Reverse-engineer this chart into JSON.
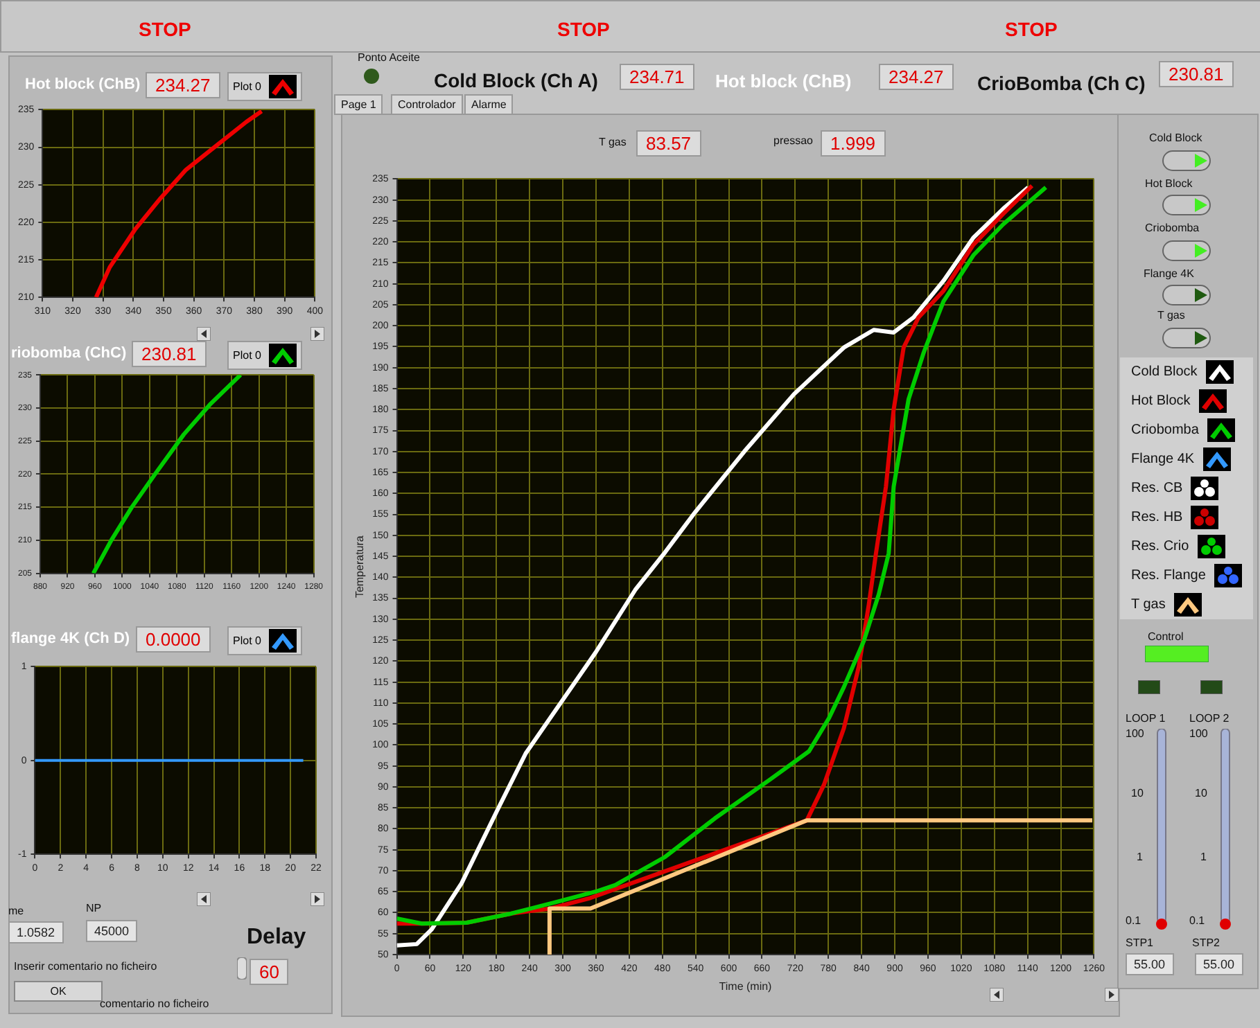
{
  "chart_data": [
    {
      "type": "line",
      "xlabel": "Time (min)",
      "ylabel": "Temperatura",
      "xlim": [
        0,
        1260
      ],
      "ylim": [
        50,
        235
      ],
      "xticks": [
        0,
        60,
        120,
        180,
        240,
        300,
        360,
        420,
        480,
        540,
        600,
        660,
        720,
        780,
        840,
        900,
        960,
        1020,
        1080,
        1140,
        1200,
        1260
      ],
      "yticks": [
        50,
        55,
        60,
        65,
        70,
        75,
        80,
        85,
        90,
        95,
        100,
        105,
        110,
        115,
        120,
        125,
        130,
        135,
        140,
        145,
        150,
        155,
        160,
        165,
        170,
        175,
        180,
        185,
        190,
        195,
        200,
        205,
        210,
        215,
        220,
        225,
        230,
        235
      ],
      "grid": true,
      "legend": "right",
      "marker": "none",
      "series": [
        {
          "name": "Cold Block",
          "color": "#ffffff",
          "x": [
            0,
            36,
            63,
            117,
            180,
            233,
            296,
            359,
            431,
            485,
            539,
            628,
            718,
            808,
            862,
            898,
            934,
            988,
            1042,
            1096,
            1141
          ],
          "values": [
            52.2,
            52.5,
            56,
            67,
            84,
            98,
            110,
            122,
            137,
            146,
            155.5,
            170,
            183.7,
            194.8,
            199,
            198.4,
            202,
            210.7,
            221,
            227.9,
            233
          ]
        },
        {
          "name": "Hot Block",
          "color": "#e00000",
          "x": [
            0,
            54,
            126,
            207,
            278,
            350,
            741,
            772,
            808,
            835,
            853,
            866,
            884,
            898,
            916,
            943,
            988,
            1042,
            1096,
            1148
          ],
          "values": [
            57.4,
            57.4,
            57.6,
            59.8,
            61,
            63.5,
            82,
            90.5,
            104,
            118.7,
            133.4,
            145.7,
            161.6,
            180,
            194.8,
            202,
            208.3,
            219.3,
            226.7,
            233.4
          ]
        },
        {
          "name": "Criobomba",
          "color": "#00cc00",
          "x": [
            0,
            45,
            126,
            207,
            287,
            359,
            395,
            485,
            575,
            674,
            745,
            781,
            808,
            844,
            871,
            889,
            898,
            925,
            952,
            970,
            988,
            1042,
            1096,
            1173
          ],
          "values": [
            58.6,
            57.4,
            57.6,
            59.8,
            62.5,
            65,
            66.6,
            73.3,
            82.5,
            91.7,
            98.5,
            106.4,
            113.8,
            124.8,
            135.9,
            145.7,
            161.6,
            182.5,
            193.5,
            199.7,
            205.8,
            216.8,
            224.2,
            233
          ]
        },
        {
          "name": "Flange 4K",
          "color": "#3399ff"
        },
        {
          "name": "Res. CB",
          "type": "scatter",
          "color": "#ffffff"
        },
        {
          "name": "Res. HB",
          "type": "scatter",
          "color": "#cc0000"
        },
        {
          "name": "Res. Crio",
          "type": "scatter",
          "color": "#00cc00"
        },
        {
          "name": "Res. Flange",
          "type": "scatter",
          "color": "#3366ff"
        },
        {
          "name": "T gas",
          "color": "#ffc880",
          "x": [
            276,
            276,
            350,
            741,
            1257
          ],
          "values": [
            50,
            61,
            61,
            82,
            82
          ]
        }
      ]
    },
    {
      "type": "line",
      "title": "Hot block (ChB)",
      "annotations": [
        "234.27"
      ],
      "xlim": [
        310,
        400
      ],
      "ylim": [
        210,
        235
      ],
      "xticks": [
        310,
        320,
        330,
        340,
        350,
        360,
        370,
        380,
        390,
        400
      ],
      "yticks": [
        210,
        215,
        220,
        225,
        230,
        235
      ],
      "grid": true,
      "legend": "top right",
      "marker": "none",
      "series": [
        {
          "name": "Plot 0",
          "color": "#ee0000",
          "x": [
            327.7,
            332.2,
            340.5,
            349,
            357.4,
            367.4,
            377.4,
            382.4
          ],
          "values": [
            210,
            214,
            219,
            223.2,
            227,
            230.2,
            233.4,
            234.8
          ]
        }
      ]
    },
    {
      "type": "line",
      "title": "riobomba (ChC)",
      "annotations": [
        "230.81"
      ],
      "xlim": [
        880,
        1280
      ],
      "ylim": [
        205,
        235
      ],
      "xticks": [
        880,
        920,
        960,
        1000,
        1040,
        1080,
        1120,
        1160,
        1200,
        1240,
        1280
      ],
      "yticks": [
        205,
        210,
        215,
        220,
        225,
        230,
        235
      ],
      "grid": true,
      "legend": "top right",
      "marker": "none",
      "series": [
        {
          "name": "Plot 0",
          "color": "#00cc00",
          "x": [
            957.7,
            984,
            1014,
            1048,
            1090,
            1128,
            1173
          ],
          "values": [
            205,
            210,
            215,
            220,
            226,
            230.5,
            235
          ]
        }
      ]
    },
    {
      "type": "line",
      "title": "flange 4K (Ch D)",
      "annotations": [
        "0.0000"
      ],
      "xlim": [
        0,
        22
      ],
      "ylim": [
        -1,
        1
      ],
      "xticks": [
        0,
        2,
        4,
        6,
        8,
        10,
        12,
        14,
        16,
        18,
        20,
        22
      ],
      "yticks": [
        -1,
        0,
        1
      ],
      "grid": true,
      "legend": "top right",
      "marker": "none",
      "series": [
        {
          "name": "Plot 0",
          "color": "#3399ff",
          "x": [
            0,
            21
          ],
          "values": [
            0,
            0
          ]
        }
      ]
    },
    {
      "type": "other",
      "annotations": [
        "STOP",
        "STOP",
        "STOP",
        "Ponto Aceite",
        "Cold Block (Ch A)",
        "234.71",
        "Hot block (ChB)",
        "234.27",
        "CrioBomba (Ch C)",
        "230.81",
        "Page 1",
        "Controlador",
        "Alarme",
        "T gas",
        "83.57",
        "pressao",
        "1.999",
        "Cold Block",
        "Hot Block",
        "Criobomba",
        "Flange 4K",
        "T gas",
        "Control",
        "LOOP 1",
        "LOOP 2",
        "100",
        "10",
        "1",
        "0.1",
        "100",
        "10",
        "1",
        "0.1",
        "STP1",
        "STP2",
        "55.00",
        "55.00",
        "me",
        "1.0582",
        "NP",
        "45000",
        "Delay",
        "60",
        "Inserir comentario no ficheiro",
        "OK",
        "comentario no ficheiro"
      ]
    }
  ]
}
